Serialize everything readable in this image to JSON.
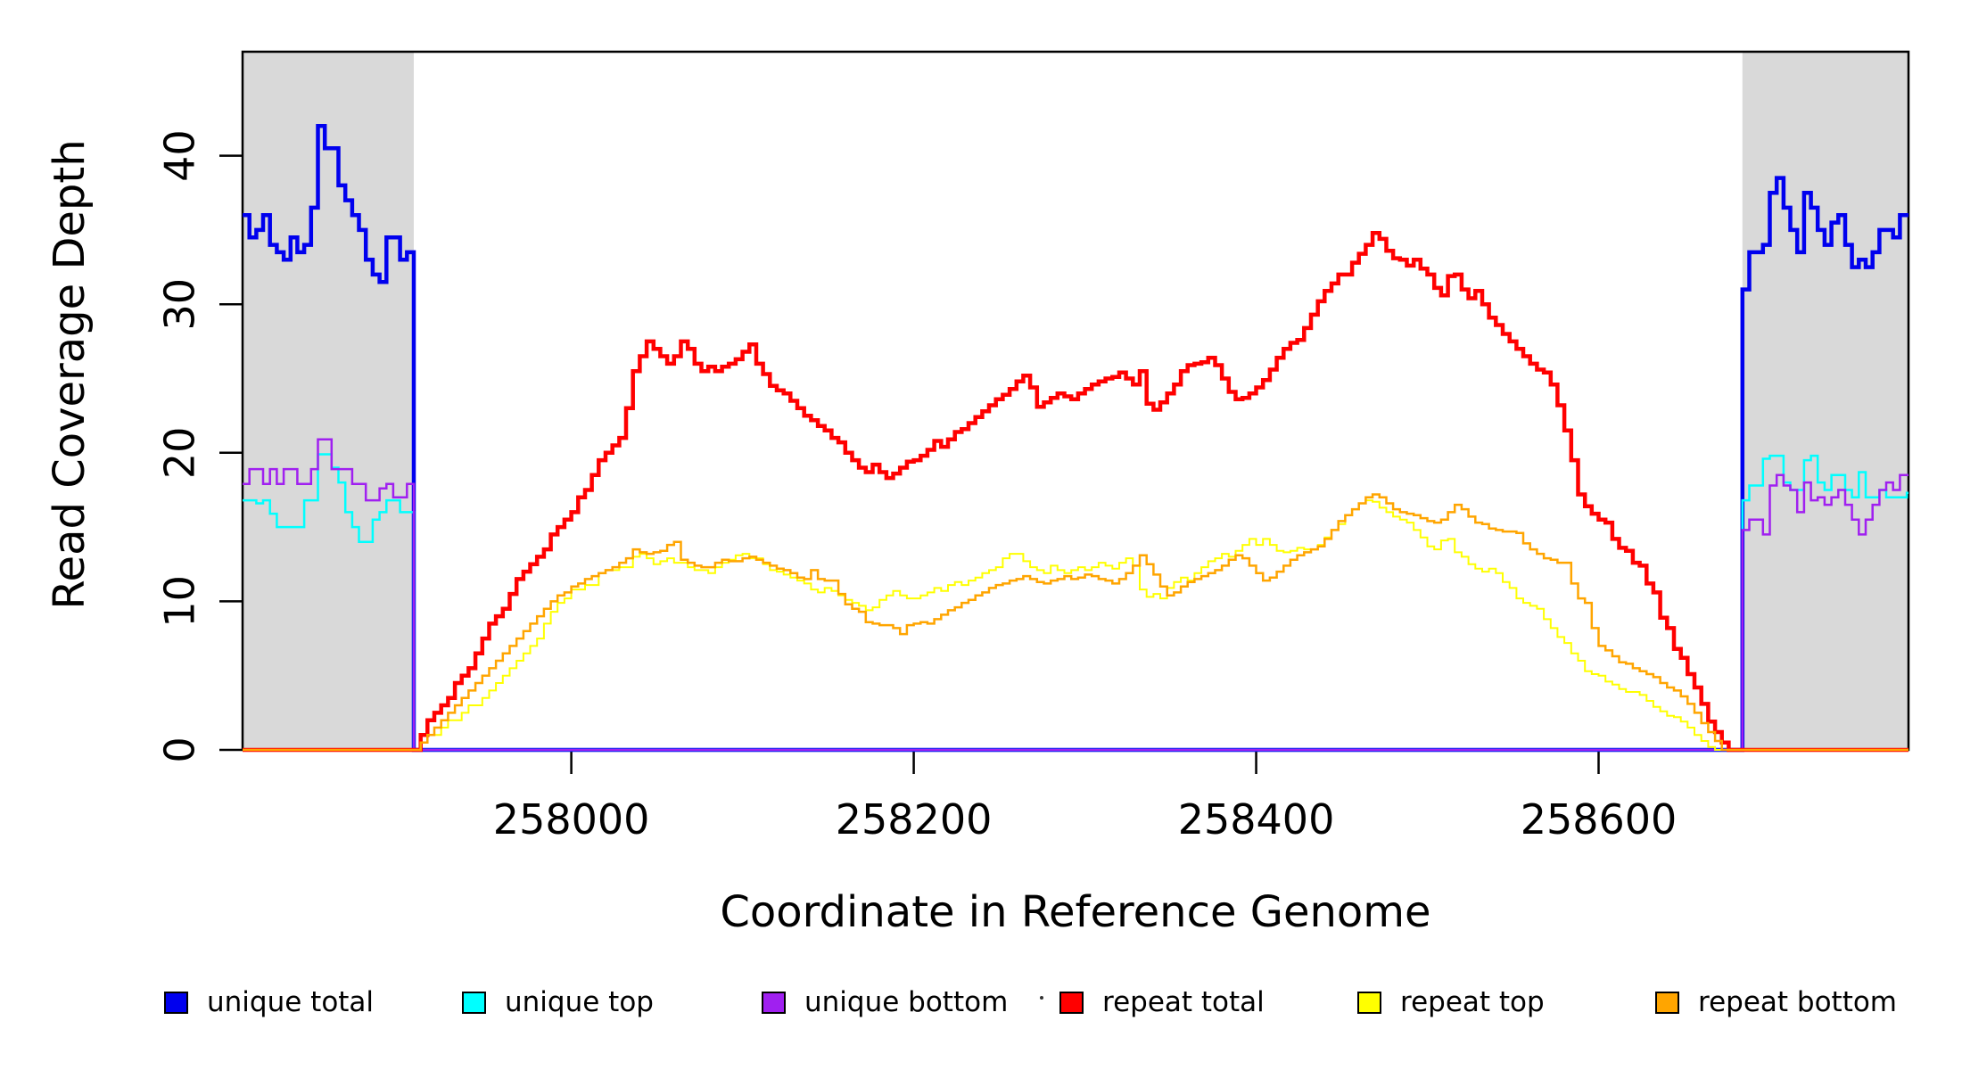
{
  "chart_data": {
    "type": "line",
    "subtype": "step",
    "title": "",
    "xlabel": "Coordinate in Reference Genome",
    "ylabel": "Read Coverage Depth",
    "xlim": [
      257808,
      258781
    ],
    "ylim": [
      0,
      47
    ],
    "x_ticks": [
      "258000",
      "258200",
      "258400",
      "258600"
    ],
    "x_tick_values": [
      258000,
      258200,
      258400,
      258600
    ],
    "y_ticks": [
      "0",
      "10",
      "20",
      "30",
      "40"
    ],
    "y_tick_values": [
      0,
      10,
      20,
      30,
      40
    ],
    "grid": false,
    "legend_position": "bottom",
    "shade_color": "#D9D9D9",
    "shaded_regions": [
      {
        "x0": 257808,
        "x1": 257908
      },
      {
        "x0": 258684,
        "x1": 258781
      }
    ],
    "series": [
      {
        "name": "unique total",
        "color": "#0000EE",
        "width": 4.5,
        "segments": [
          {
            "x0": 257808,
            "dx": 4,
            "v": [
              36,
              34.5,
              35,
              36,
              34,
              33.5,
              33,
              34.5,
              33.5,
              34,
              36.5,
              42,
              40.5,
              40.5,
              38,
              37,
              36,
              35,
              33,
              32,
              31.5,
              34.5,
              34.5,
              33,
              33.5,
              0
            ]
          },
          {
            "x0": 258684,
            "dx": 4,
            "v": [
              31,
              33.5,
              33.5,
              34,
              37.5,
              38.5,
              36.5,
              35,
              33.5,
              37.5,
              36.5,
              35,
              34,
              35.5,
              36,
              34,
              32.5,
              33,
              32.5,
              33.5,
              35,
              35,
              34.5,
              36,
              36
            ]
          }
        ]
      },
      {
        "name": "unique top",
        "color": "#00FFFF",
        "width": 2.5,
        "segments": [
          {
            "x0": 257808,
            "dx": 4,
            "v": [
              16.8,
              16.8,
              16.6,
              16.8,
              15.9,
              15,
              15,
              15,
              15,
              16.8,
              16.8,
              19.9,
              19.9,
              19,
              18,
              16,
              15,
              14,
              14,
              15.5,
              16,
              16.8,
              16.8,
              16,
              16,
              0
            ]
          },
          {
            "x0": 258684,
            "dx": 4,
            "v": [
              16.8,
              17.8,
              17.8,
              19.6,
              19.8,
              19.8,
              18,
              17.5,
              17.5,
              19.5,
              19.8,
              18,
              17.5,
              18.5,
              18.5,
              17.5,
              17,
              18.7,
              17,
              17,
              17.5,
              17,
              17,
              17,
              17.3
            ]
          }
        ]
      },
      {
        "name": "unique bottom",
        "color": "#A020F0",
        "width": 2.5,
        "segments": [
          {
            "x0": 257808,
            "dx": 4,
            "v": [
              17.9,
              18.9,
              18.9,
              17.9,
              18.9,
              17.9,
              18.9,
              18.9,
              17.9,
              17.9,
              18.9,
              20.9,
              20.9,
              18.9,
              18.9,
              18.9,
              17.9,
              17.9,
              16.8,
              16.8,
              17.6,
              17.9,
              17,
              17,
              17.9,
              0
            ]
          },
          {
            "x0": 258684,
            "dx": 4,
            "v": [
              14.8,
              15.5,
              15.5,
              14.5,
              17.8,
              18.5,
              17.8,
              17.5,
              16,
              18,
              16.8,
              17,
              16.5,
              17,
              17.5,
              16.5,
              15.5,
              14.5,
              15.5,
              16.5,
              17.5,
              18,
              17.5,
              18.5,
              18.5
            ]
          }
        ]
      },
      {
        "name": "repeat total",
        "color": "#FF0000",
        "width": 4.5,
        "segments": [
          {
            "x0": 257808,
            "dx": 100,
            "v": [
              0,
              0
            ]
          },
          {
            "x0": 257912,
            "dx": 4,
            "v": [
              1,
              2,
              2.5,
              3,
              3.5,
              4.5,
              5,
              5.5,
              6.5,
              7.5,
              8.5,
              9,
              9.5,
              10.5,
              11.5,
              12,
              12.5,
              13,
              13.5,
              14.5,
              15,
              15.5,
              16,
              17,
              17.5,
              18.5,
              19.5,
              20,
              20.5,
              21,
              23,
              25.5,
              26.5,
              27.5,
              27,
              26.5,
              26,
              26.5,
              27.5,
              27,
              26,
              25.5,
              25.8,
              25.5,
              25.8,
              26,
              26.3,
              26.8,
              27.3,
              26,
              25.3,
              24.5,
              24.2,
              24,
              23.5,
              23,
              22.5,
              22.2,
              21.8,
              21.5,
              21,
              20.7,
              20,
              19.5,
              19,
              18.7,
              19.2,
              18.7,
              18.3,
              18.6,
              19,
              19.4,
              19.5,
              19.8,
              20.2,
              20.8,
              20.4,
              20.9,
              21.4,
              21.6,
              22,
              22.4,
              22.8,
              23.2,
              23.6,
              23.9,
              24.3,
              24.8,
              25.2,
              24.4,
              23.1,
              23.4,
              23.7,
              24,
              23.8,
              23.6,
              24,
              24.3,
              24.6,
              24.8,
              25,
              25.1,
              25.4,
              25,
              24.6,
              25.5,
              23.3,
              22.9,
              23.4,
              24,
              24.6,
              25.5,
              25.9,
              26,
              26.1,
              26.4,
              25.9,
              25,
              24.1,
              23.6,
              23.7,
              24,
              24.4,
              24.9,
              25.6,
              26.4,
              27,
              27.4,
              27.6,
              28.4,
              29.3,
              30.2,
              30.9,
              31.4,
              32,
              32,
              32.8,
              33.4,
              34,
              34.8,
              34.4,
              33.6,
              33.1,
              33,
              32.6,
              33,
              32.4,
              32,
              31.1,
              30.6,
              31.9,
              32,
              31,
              30.4,
              30.9,
              30,
              29.1,
              28.6,
              28,
              27.5,
              27,
              26.5,
              26,
              25.6,
              25.4,
              24.6,
              23.2,
              21.5,
              19.5,
              17.2,
              16.4,
              15.9,
              15.5,
              15.3,
              14.2,
              13.6,
              13.4,
              12.6,
              12.4,
              11.2,
              10.6,
              8.9,
              8.2,
              6.8,
              6.2,
              5.1,
              4.2,
              3.1,
              1.9,
              1.2,
              0.5,
              0
            ]
          }
        ]
      },
      {
        "name": "repeat top",
        "color": "#FFFF00",
        "width": 2,
        "segments": [
          {
            "x0": 257808,
            "dx": 100,
            "v": [
              0,
              0
            ]
          },
          {
            "x0": 257912,
            "dx": 4,
            "v": [
              0.5,
              1,
              1,
              1.5,
              2,
              2,
              2.5,
              3,
              3,
              3.5,
              4,
              4.5,
              5,
              5.5,
              6,
              6.5,
              7,
              7.5,
              8.5,
              9.3,
              9.9,
              10.2,
              10.8,
              10.8,
              11.1,
              11.1,
              11.9,
              12.1,
              12.1,
              12.3,
              12.3,
              13,
              13.2,
              12.9,
              12.5,
              12.7,
              12.9,
              12.6,
              12.6,
              12.3,
              12.1,
              12.1,
              11.9,
              12.3,
              12.6,
              12.8,
              13.1,
              13.2,
              12.9,
              12.9,
              12.5,
              12.1,
              12,
              11.8,
              11.6,
              11.4,
              11.2,
              10.8,
              10.6,
              10.9,
              10.7,
              10.4,
              10.1,
              9.9,
              9.7,
              9.4,
              9.6,
              10.1,
              10.4,
              10.7,
              10.4,
              10.2,
              10.2,
              10.4,
              10.6,
              10.9,
              10.7,
              11.1,
              11.3,
              11.1,
              11.4,
              11.6,
              11.9,
              12.1,
              12.3,
              12.9,
              13.2,
              13.2,
              12.7,
              12.3,
              12.1,
              11.9,
              12.4,
              12.1,
              11.9,
              12.1,
              12.3,
              12.1,
              12.3,
              12.6,
              12.4,
              12.2,
              12.6,
              12.9,
              12.4,
              10.8,
              10.3,
              10.5,
              10.2,
              10.9,
              11.3,
              11.6,
              11.4,
              11.9,
              12.3,
              12.7,
              12.9,
              13.2,
              13,
              13.4,
              13.8,
              14.2,
              13.8,
              14.2,
              13.8,
              13.4,
              13.3,
              13.4,
              13.6,
              13.5,
              13.5,
              13.8,
              14.3,
              14.8,
              15.2,
              15.8,
              16.2,
              16.6,
              16.8,
              16.7,
              16.3,
              16,
              15.7,
              15.5,
              15.3,
              14.8,
              14.3,
              13.7,
              13.5,
              14.1,
              14.2,
              13.3,
              13,
              12.5,
              12.2,
              12,
              12.2,
              11.9,
              11.3,
              10.9,
              10.2,
              9.9,
              9.7,
              9.5,
              8.8,
              8.2,
              7.6,
              7.2,
              6.5,
              6,
              5.3,
              5.1,
              5,
              4.6,
              4.4,
              4.1,
              3.9,
              3.9,
              3.7,
              3.3,
              2.9,
              2.6,
              2.3,
              2.2,
              1.9,
              1.5,
              1,
              0.6,
              0.2,
              0,
              0
            ]
          }
        ]
      },
      {
        "name": "repeat bottom",
        "color": "#FFA500",
        "width": 2.5,
        "segments": [
          {
            "x0": 257808,
            "dx": 100,
            "v": [
              0,
              0
            ]
          },
          {
            "x0": 257912,
            "dx": 4,
            "v": [
              0.5,
              1,
              1.5,
              2,
              2.5,
              3,
              3.5,
              4,
              4.5,
              5,
              5.5,
              6,
              6.5,
              7,
              7.5,
              8,
              8.5,
              9,
              9.5,
              10,
              10.4,
              10.6,
              11,
              11.2,
              11.5,
              11.7,
              11.9,
              12.1,
              12.3,
              12.6,
              12.9,
              13.5,
              13.3,
              13.2,
              13.3,
              13.4,
              13.8,
              14,
              12.8,
              12.6,
              12.4,
              12.3,
              12.3,
              12.6,
              12.8,
              12.7,
              12.7,
              12.9,
              13,
              12.8,
              12.6,
              12.4,
              12.2,
              12.1,
              11.9,
              11.6,
              11.5,
              12.1,
              11.5,
              11.4,
              11.4,
              10.5,
              9.8,
              9.5,
              9.3,
              8.6,
              8.5,
              8.4,
              8.4,
              8.2,
              7.8,
              8.4,
              8.5,
              8.6,
              8.5,
              8.8,
              9.1,
              9.4,
              9.6,
              9.9,
              10.1,
              10.4,
              10.6,
              10.9,
              11.1,
              11.2,
              11.4,
              11.5,
              11.7,
              11.5,
              11.3,
              11.2,
              11.4,
              11.5,
              11.7,
              11.5,
              11.6,
              11.8,
              11.7,
              11.5,
              11.4,
              11.2,
              11.5,
              11.9,
              12.4,
              13.1,
              12.5,
              11.8,
              11,
              10.4,
              10.6,
              11,
              11.3,
              11.5,
              11.7,
              11.9,
              12.1,
              12.4,
              12.8,
              13.1,
              12.9,
              12.4,
              11.9,
              11.4,
              11.6,
              12,
              12.4,
              12.8,
              13.1,
              13.3,
              13.5,
              13.7,
              14.2,
              14.8,
              15.4,
              15.8,
              16.2,
              16.6,
              17,
              17.2,
              17,
              16.6,
              16.2,
              16,
              15.9,
              15.8,
              15.6,
              15.4,
              15.3,
              15.5,
              16,
              16.5,
              16.2,
              15.7,
              15.3,
              15.2,
              14.9,
              14.8,
              14.7,
              14.7,
              14.6,
              13.9,
              13.5,
              13.2,
              12.9,
              12.8,
              12.6,
              12.6,
              11.2,
              10.2,
              9.9,
              8.2,
              7,
              6.7,
              6.3,
              5.9,
              5.8,
              5.5,
              5.3,
              5.1,
              4.9,
              4.5,
              4.2,
              4,
              3.6,
              3.1,
              2.5,
              1.8,
              1.2,
              0.6,
              0
            ]
          }
        ]
      }
    ]
  },
  "legend": {
    "items": [
      {
        "label": "unique total",
        "color": "#0000EE"
      },
      {
        "label": "unique top",
        "color": "#00FFFF"
      },
      {
        "label": "unique bottom",
        "color": "#A020F0"
      },
      {
        "label": "repeat total",
        "color": "#FF0000"
      },
      {
        "label": "repeat top",
        "color": "#FFFF00"
      },
      {
        "label": "repeat bottom",
        "color": "#FFA500"
      }
    ]
  }
}
